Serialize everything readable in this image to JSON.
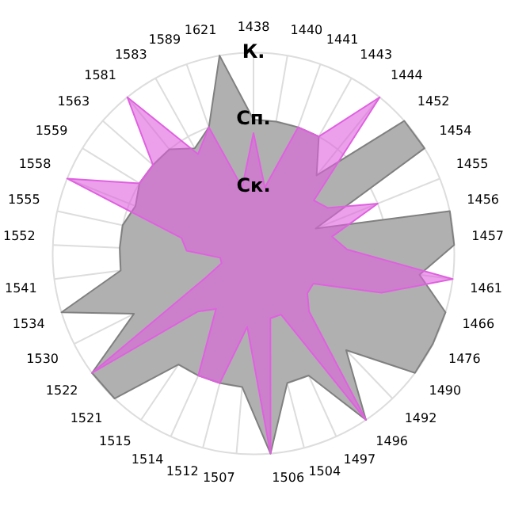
{
  "chart_data": {
    "type": "radar",
    "categories": [
      "1438",
      "1440",
      "1441",
      "1443",
      "1444",
      "1452",
      "1454",
      "1455",
      "1456",
      "1457",
      "1461",
      "1466",
      "1476",
      "1490",
      "1492",
      "1496",
      "1497",
      "1504",
      "1506",
      "1507",
      "1512",
      "1514",
      "1515",
      "1521",
      "1522",
      "1530",
      "1534",
      "1541",
      "1552",
      "1555",
      "1558",
      "1559",
      "1563",
      "1581",
      "1583",
      "1589",
      "1621"
    ],
    "series": [
      {
        "color": "#b0b0b0",
        "values": [
          2,
          2,
          2,
          2,
          1.5,
          3,
          3,
          1,
          3,
          3,
          2.5,
          3,
          3,
          3,
          2,
          3,
          2,
          2,
          3,
          2,
          2,
          2,
          2,
          3,
          3,
          2,
          3,
          2,
          2,
          2,
          1.9,
          2,
          2,
          2,
          1.8,
          2,
          3
        ]
      },
      {
        "color": "#e060e0",
        "values": [
          1.8,
          1,
          2,
          2,
          3,
          1.2,
          1.3,
          2,
          1.2,
          1.4,
          3,
          2,
          1,
          1,
          1.2,
          3,
          1,
          1,
          3,
          1.1,
          2,
          2,
          1,
          1.2,
          3,
          0.8,
          0.5,
          0.5,
          1,
          1.1,
          3,
          2,
          2,
          3,
          1.7,
          2,
          1
        ]
      }
    ],
    "ylim": [
      0,
      3
    ],
    "yticks": [
      {
        "value": 1,
        "label": "Ск."
      },
      {
        "value": 2,
        "label": "Сп."
      },
      {
        "value": 3,
        "label": "К."
      }
    ],
    "grid": true,
    "legend": false,
    "marker": "none"
  }
}
